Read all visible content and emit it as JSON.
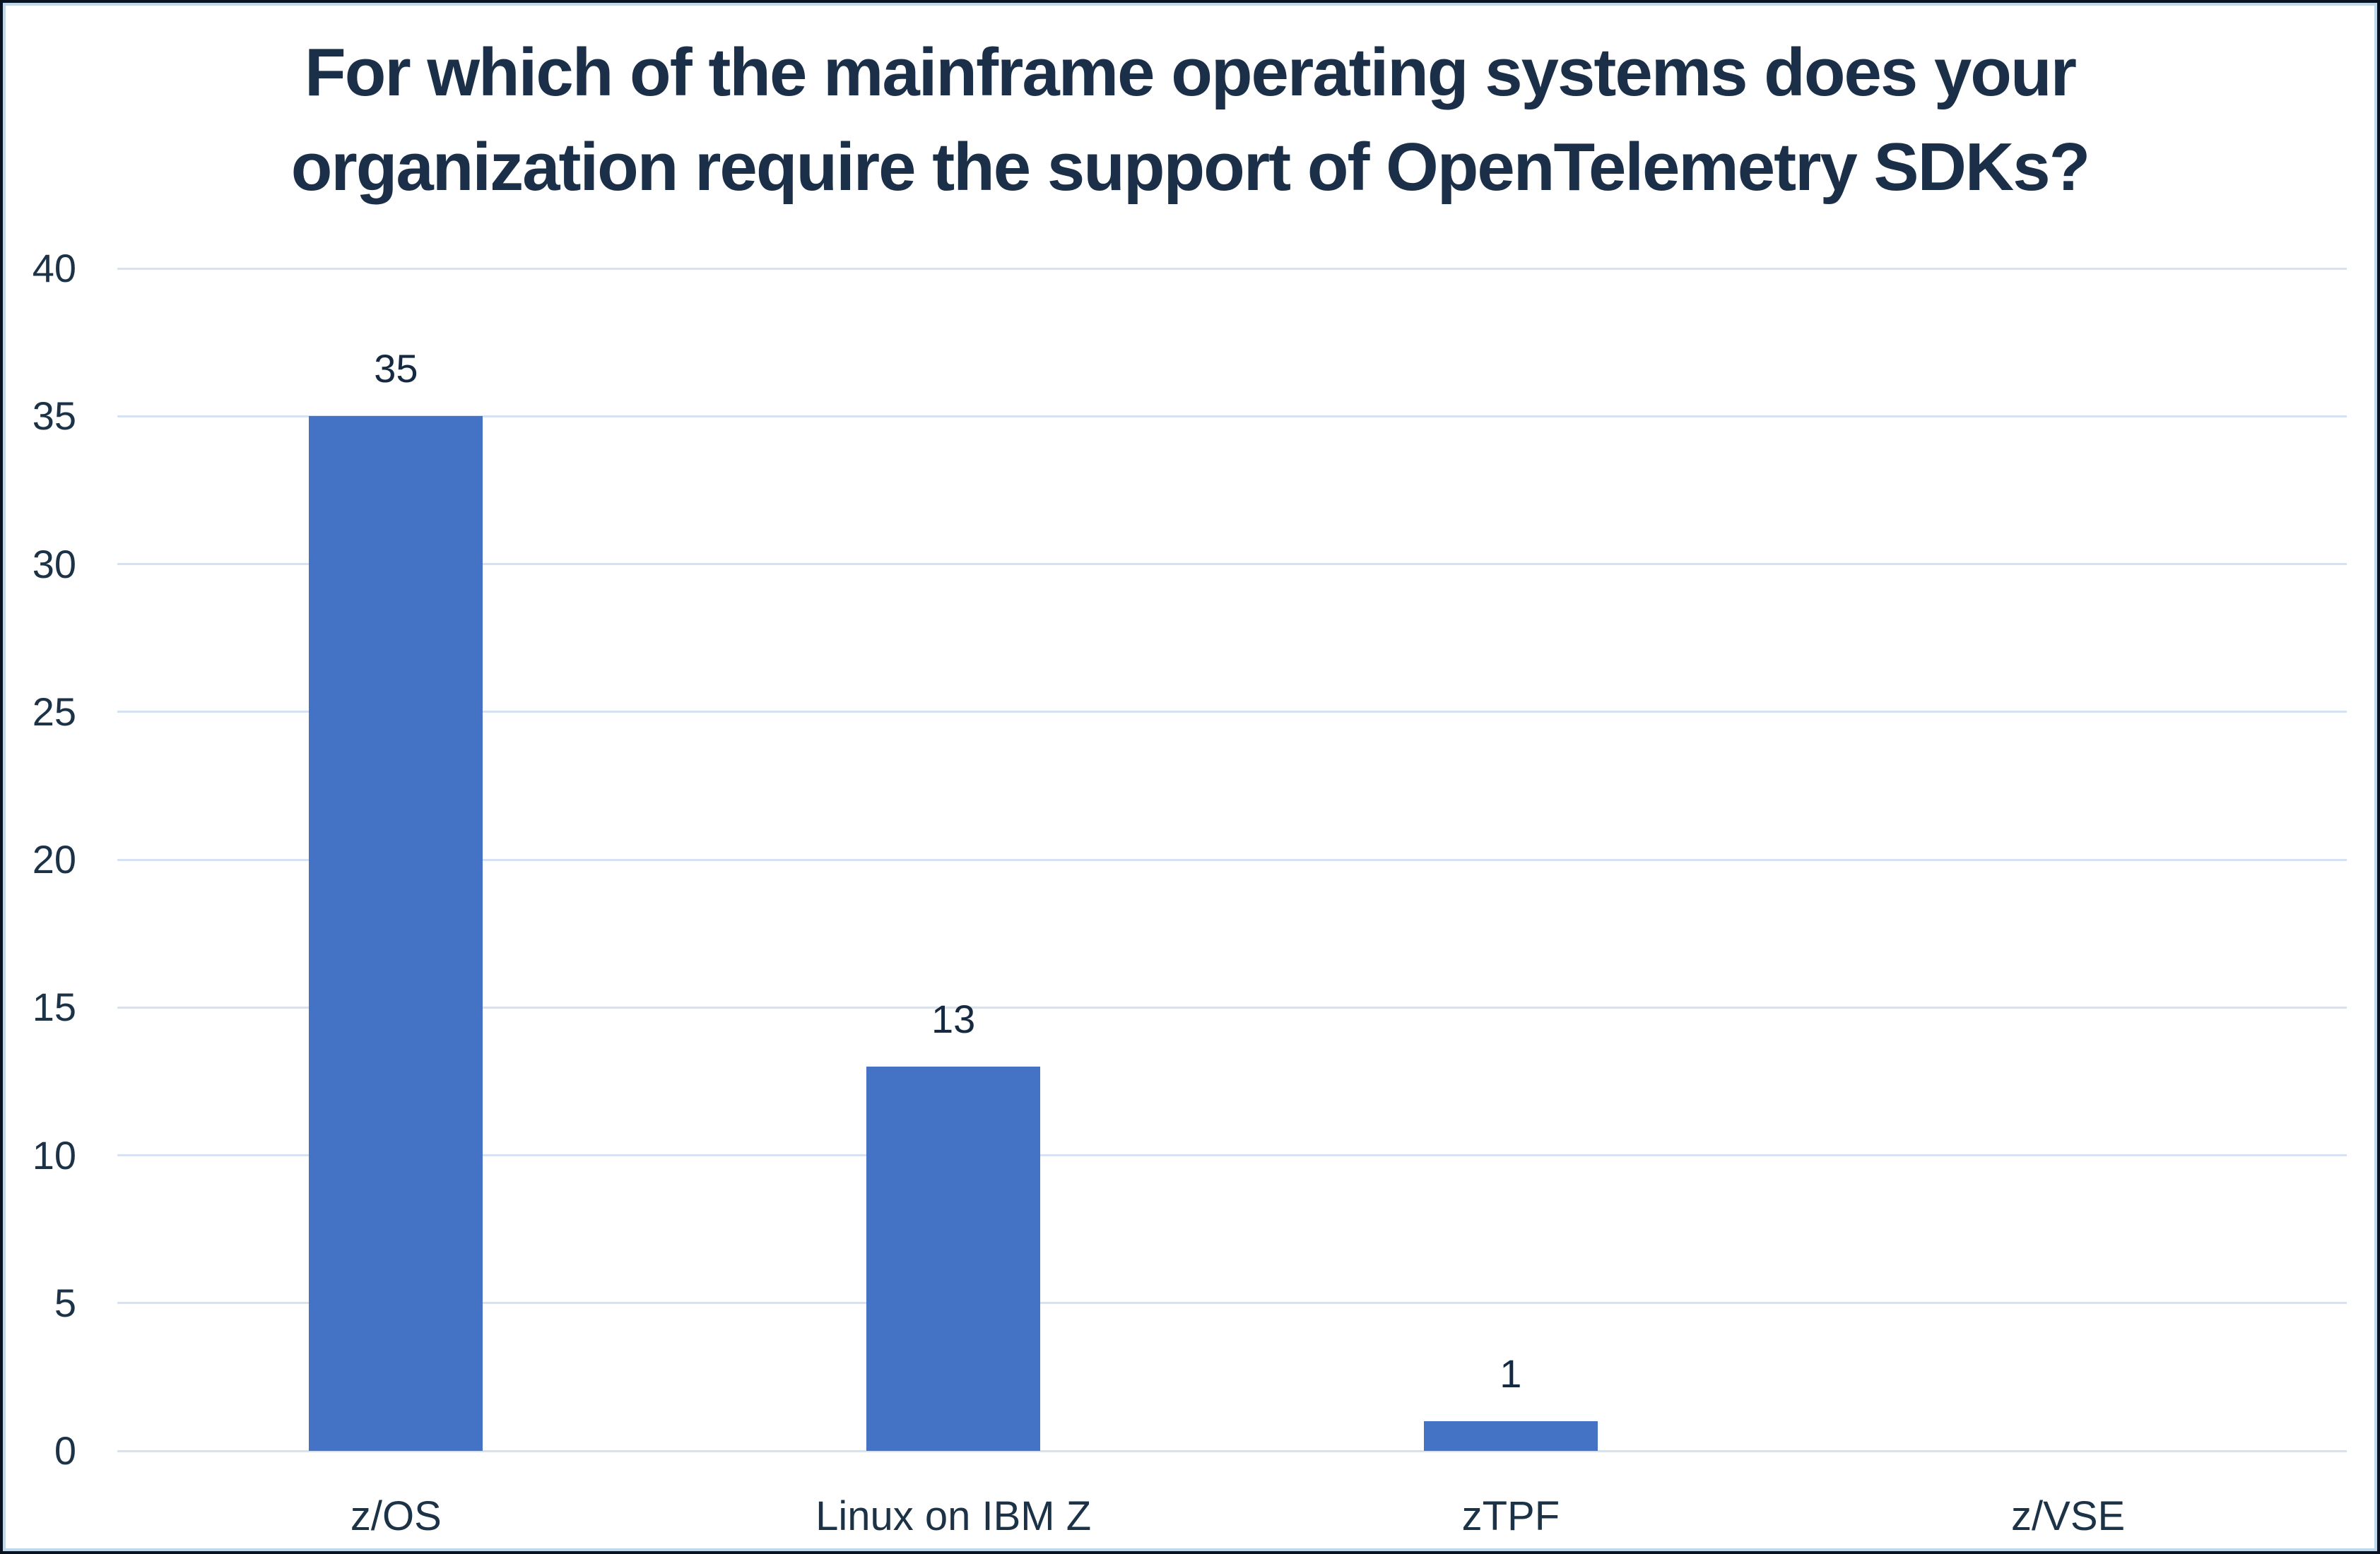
{
  "window": {
    "background": "#ffffff",
    "outer_border_color": "#0a121f",
    "inner_border_color": "#bdd7ee"
  },
  "title_lines": [
    "For which of the mainframe operating systems does your",
    "organization require the support of OpenTelemetry SDKs?"
  ],
  "chart_data": {
    "type": "bar",
    "title": "For which of the mainframe operating systems does your organization require the support of OpenTelemetry SDKs?",
    "categories": [
      "z/OS",
      "Linux on IBM Z",
      "zTPF",
      "z/VSE"
    ],
    "values": [
      35,
      13,
      1,
      0
    ],
    "data_labels": [
      "35",
      "13",
      "1",
      ""
    ],
    "xlabel": "",
    "ylabel": "",
    "ylim": [
      0,
      40
    ],
    "ytick_step": 5,
    "ytick_labels": [
      "0",
      "5",
      "10",
      "15",
      "20",
      "25",
      "30",
      "35",
      "40"
    ],
    "grid": "horizontal-only",
    "legend": "none",
    "bar_color": "#4472C4",
    "gridline_color": "#d5e2f3",
    "title_color": "#1b3048",
    "axis_text_color": "#1c3347",
    "data_label_color": "#152940"
  }
}
